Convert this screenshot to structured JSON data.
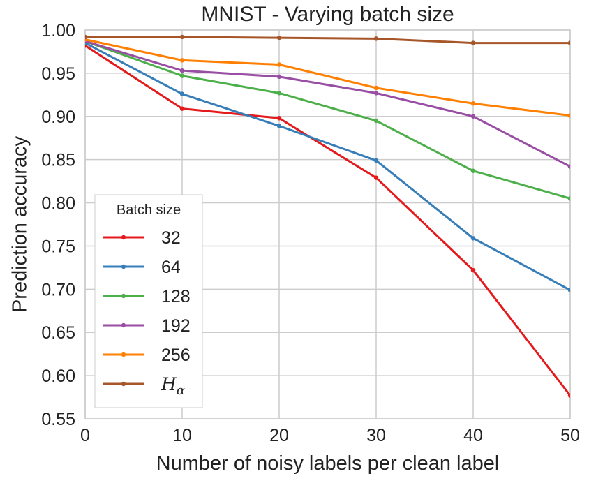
{
  "chart_data": {
    "type": "line",
    "title": "MNIST - Varying batch size",
    "xlabel": "Number of noisy labels per clean label",
    "ylabel": "Prediction accuracy",
    "xlim": [
      0,
      50
    ],
    "ylim": [
      0.55,
      1.0
    ],
    "x_ticks": [
      "0",
      "10",
      "20",
      "30",
      "40",
      "50"
    ],
    "y_ticks": [
      "0.55",
      "0.60",
      "0.65",
      "0.70",
      "0.75",
      "0.80",
      "0.85",
      "0.90",
      "0.95",
      "1.00"
    ],
    "grid": true,
    "legend": {
      "title": "Batch size",
      "position": "lower-left"
    },
    "x": [
      0,
      10,
      20,
      30,
      40,
      50
    ],
    "series": [
      {
        "name": "32",
        "color": "#e41a1c",
        "values": [
          0.982,
          0.909,
          0.898,
          0.829,
          0.722,
          0.577
        ]
      },
      {
        "name": "64",
        "color": "#377eb8",
        "values": [
          0.985,
          0.926,
          0.889,
          0.849,
          0.759,
          0.699
        ]
      },
      {
        "name": "128",
        "color": "#4daf4a",
        "values": [
          0.987,
          0.947,
          0.927,
          0.895,
          0.837,
          0.805
        ]
      },
      {
        "name": "192",
        "color": "#984ea3",
        "values": [
          0.987,
          0.953,
          0.946,
          0.927,
          0.9,
          0.842
        ]
      },
      {
        "name": "256",
        "color": "#ff7f00",
        "values": [
          0.989,
          0.965,
          0.96,
          0.933,
          0.915,
          0.901
        ]
      },
      {
        "name": "Hα",
        "color": "#a65628",
        "values": [
          0.992,
          0.992,
          0.991,
          0.99,
          0.985,
          0.985
        ]
      }
    ]
  }
}
